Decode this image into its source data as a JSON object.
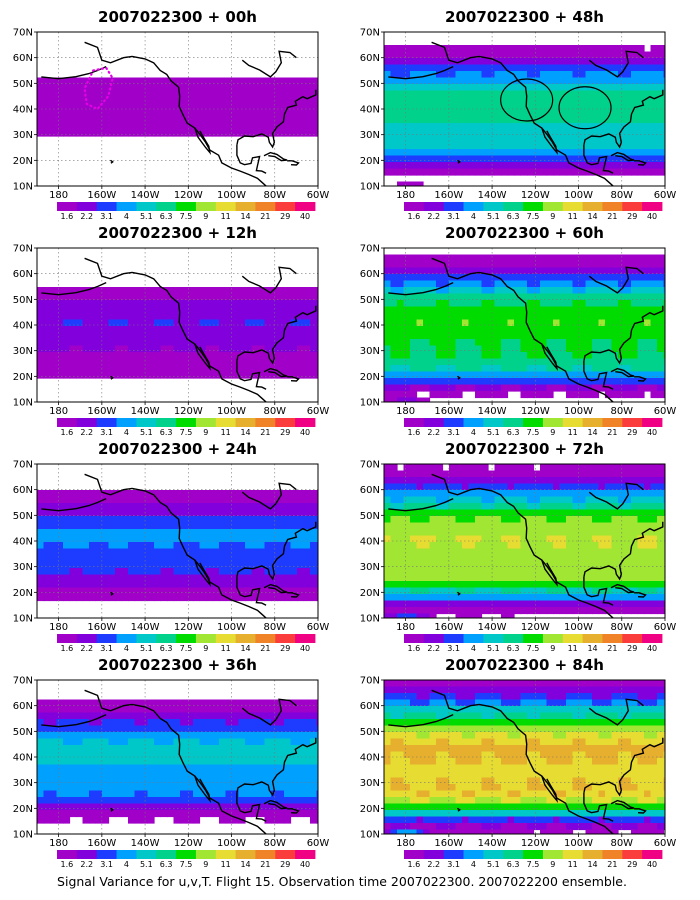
{
  "caption": "Signal Variance for u,v,T. Flight 15. Observation time 2007022300. 2007022200 ensemble.",
  "panels": [
    {
      "title": "2007022300 + 00h",
      "level": 0
    },
    {
      "title": "2007022300 + 48h",
      "level": 4
    },
    {
      "title": "2007022300 + 12h",
      "level": 1
    },
    {
      "title": "2007022300 + 60h",
      "level": 5
    },
    {
      "title": "2007022300 + 24h",
      "level": 2
    },
    {
      "title": "2007022300 + 72h",
      "level": 6
    },
    {
      "title": "2007022300 + 36h",
      "level": 3
    },
    {
      "title": "2007022300 + 84h",
      "level": 7
    }
  ],
  "lat_labels": [
    "70N",
    "60N",
    "50N",
    "40N",
    "30N",
    "20N",
    "10N"
  ],
  "lon_labels": [
    "180",
    "160W",
    "140W",
    "120W",
    "100W",
    "80W",
    "60W"
  ],
  "colorbar": {
    "labels": [
      "1.6",
      "2.2",
      "3.1",
      "4",
      "5.1",
      "6.3",
      "7.5",
      "9",
      "11",
      "14",
      "21",
      "29",
      "40"
    ],
    "colors": [
      "#a000c8",
      "#8200dc",
      "#1e3cff",
      "#00a0ff",
      "#00c8c8",
      "#00d28c",
      "#00dc00",
      "#a0e632",
      "#e6dc32",
      "#e6af2d",
      "#f08228",
      "#fa3c3c",
      "#f00082"
    ]
  },
  "markers": {
    "dotted_outline_color": "#e600e6",
    "circle_color": "#000000"
  }
}
